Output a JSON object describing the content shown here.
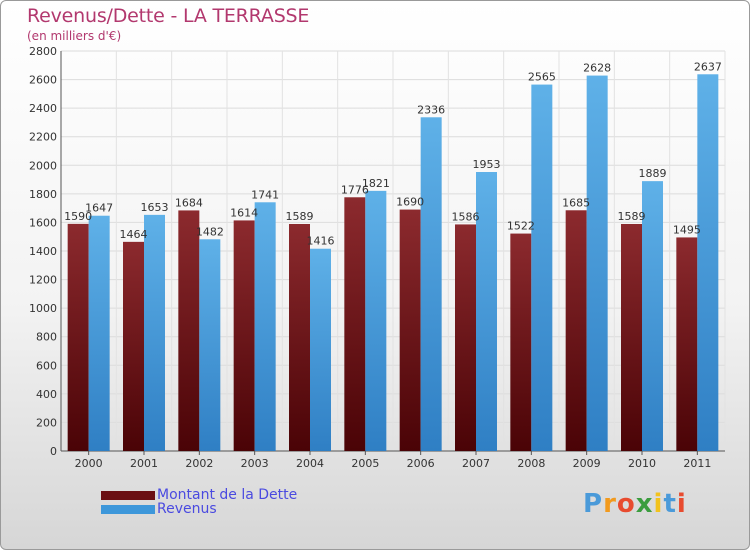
{
  "header": {
    "title": "Revenus/Dette - LA TERRASSE",
    "subtitle": "(en milliers d'€)"
  },
  "legend": {
    "items": [
      {
        "label": "Montant de la Dette",
        "color": "#6b0f13"
      },
      {
        "label": "Revenus",
        "color": "#3d97da"
      }
    ]
  },
  "logo": {
    "text": "Proxiti",
    "letters": [
      "P",
      "r",
      "o",
      "x",
      "i",
      "t",
      "i"
    ],
    "colors": [
      "#4a9ad9",
      "#f29a1d",
      "#e84b2f",
      "#3b9d3f",
      "#f2c21d",
      "#4a9ad9",
      "#e84b2f"
    ]
  },
  "chart_data": {
    "type": "bar",
    "title": "Revenus/Dette - LA TERRASSE",
    "subtitle": "(en milliers d'€)",
    "categories": [
      "2000",
      "2001",
      "2002",
      "2003",
      "2004",
      "2005",
      "2006",
      "2007",
      "2008",
      "2009",
      "2010",
      "2011"
    ],
    "series": [
      {
        "name": "Montant de la Dette",
        "color": "#6b0f13",
        "values": [
          1590,
          1464,
          1684,
          1614,
          1589,
          1776,
          1690,
          1586,
          1522,
          1685,
          1589,
          1495
        ]
      },
      {
        "name": "Revenus",
        "color": "#3d97da",
        "values": [
          1647,
          1653,
          1482,
          1741,
          1416,
          1821,
          2336,
          1953,
          2565,
          2628,
          1889,
          2637
        ]
      }
    ],
    "ylim": [
      0,
      2800
    ],
    "yticks": [
      0,
      200,
      400,
      600,
      800,
      1000,
      1200,
      1400,
      1600,
      1800,
      2000,
      2200,
      2400,
      2600,
      2800
    ],
    "grid": true,
    "legend_position": "bottom-left"
  }
}
